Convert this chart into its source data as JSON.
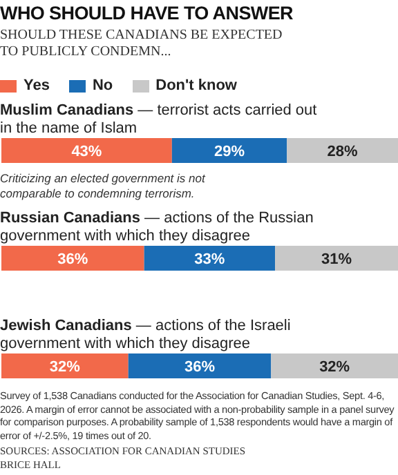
{
  "chart_data": {
    "type": "bar",
    "orientation": "horizontal",
    "stacked": true,
    "title": "WHO SHOULD HAVE TO ANSWER",
    "subtitle": "SHOULD THESE CANADIANS BE EXPECTED TO PUBLICLY CONDEMN...",
    "categories": [
      "Muslim Canadians — terrorist acts carried out in the name of Islam",
      "Russian Canadians — actions of the Russian government with which they disagree",
      "Jewish Canadians — actions of the Israeli government with which they disagree"
    ],
    "series": [
      {
        "name": "Yes",
        "color": "#f2694a",
        "values": [
          43,
          36,
          32
        ],
        "value_labels": [
          "43%",
          "36%",
          "32%"
        ]
      },
      {
        "name": "No",
        "color": "#1b6db5",
        "values": [
          29,
          33,
          36
        ],
        "value_labels": [
          "29%",
          "33%",
          "36%"
        ]
      },
      {
        "name": "Don't know",
        "color": "#c8c8c8",
        "values": [
          28,
          31,
          32
        ],
        "value_labels": [
          "28%",
          "31%",
          "32%"
        ]
      }
    ],
    "legend": "top left",
    "annotations": [
      "Criticizing an elected government is not comparable to condemning terrorism.",
      "Survey of 1,538 Canadians conducted for the Association for Canadian Studies, Sept. 4-6, 2026. A margin of error cannot be associated with a non-probability sample in a panel survey for comparison purposes. A probability sample of 1,538 respondents would have a margin of error of +/-2.5%, 19 times out of 20.",
      "SOURCES: ASSOCIATION FOR CANADIAN STUDIES",
      "BRICE HALL"
    ]
  }
}
